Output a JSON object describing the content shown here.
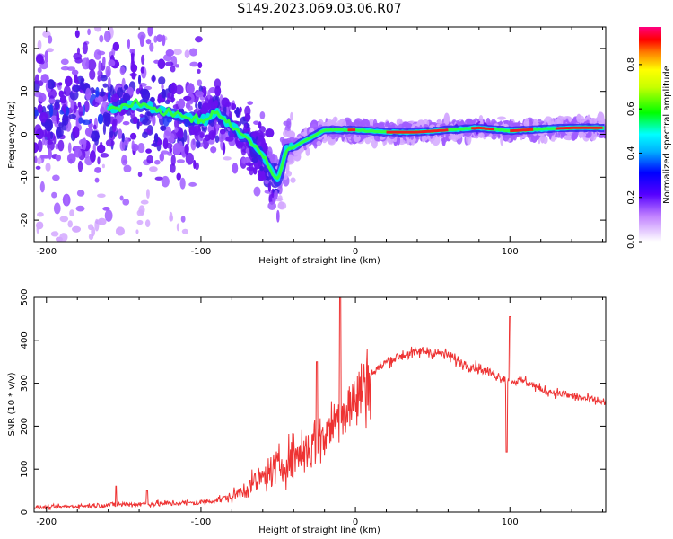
{
  "title": "S149.2023.069.03.06.R07",
  "chart_data": [
    {
      "type": "heatmap",
      "xlabel": "Height of straight line (km)",
      "ylabel": "Frequency (Hz)",
      "xlim": [
        -208,
        162
      ],
      "ylim": [
        -25,
        25
      ],
      "xticks": [
        -200,
        -100,
        0,
        100
      ],
      "yticks": [
        -20,
        -10,
        0,
        10,
        20
      ],
      "ridge": {
        "x": [
          -160,
          -140,
          -120,
          -100,
          -90,
          -80,
          -70,
          -60,
          -50,
          -45,
          -40,
          -30,
          -20,
          0,
          20,
          40,
          60,
          80,
          100,
          120,
          140,
          162
        ],
        "y": [
          6,
          7,
          5,
          3,
          5,
          2,
          -1,
          -5,
          -11,
          -3,
          -3,
          -1,
          1,
          1,
          0.5,
          0.5,
          1,
          1.5,
          0.8,
          1.2,
          1.5,
          1.5
        ]
      },
      "colorbar": {
        "label": "Normalized spectral amplitude",
        "range": [
          0,
          0.97
        ],
        "ticks": [
          "0.0",
          "0.2",
          "0.4",
          "0.6",
          "0.8"
        ]
      }
    },
    {
      "type": "line",
      "xlabel": "Height of straight line (km)",
      "ylabel": "SNR (10 * v/v)",
      "xlim": [
        -208,
        162
      ],
      "ylim": [
        0,
        500
      ],
      "xticks": [
        -200,
        -100,
        0,
        100
      ],
      "yticks": [
        0,
        100,
        200,
        300,
        400,
        500
      ],
      "color": "#ee3333",
      "trend": {
        "x": [
          -208,
          -150,
          -100,
          -80,
          -60,
          -40,
          -30,
          -20,
          -10,
          0,
          10,
          20,
          30,
          45,
          60,
          70,
          80,
          90,
          100,
          110,
          120,
          140,
          162
        ],
        "y": [
          10,
          18,
          22,
          35,
          80,
          130,
          150,
          180,
          230,
          260,
          320,
          350,
          365,
          375,
          365,
          345,
          335,
          320,
          305,
          305,
          285,
          270,
          255
        ]
      },
      "spikes": [
        {
          "x": -10,
          "y": 500
        },
        {
          "x": -25,
          "y": 350
        },
        {
          "x": 98,
          "y": 140
        },
        {
          "x": 100,
          "y": 455
        },
        {
          "x": -155,
          "y": 60
        },
        {
          "x": -135,
          "y": 50
        }
      ]
    }
  ]
}
